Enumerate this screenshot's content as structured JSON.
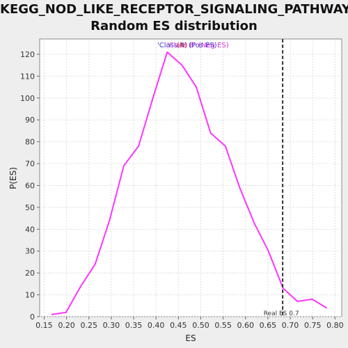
{
  "chart_data": {
    "type": "line",
    "title_line1": "KEGG_NOD_LIKE_RECEPTOR_SIGNALING_PATHWAY:",
    "title_line2": "Random ES distribution",
    "xlabel": "ES",
    "ylabel": "P(ES)",
    "xlim": [
      0.14,
      0.815
    ],
    "ylim": [
      0,
      127
    ],
    "xticks": [
      "0.15",
      "0.20",
      "0.25",
      "0.30",
      "0.35",
      "0.40",
      "0.45",
      "0.50",
      "0.55",
      "0.60",
      "0.65",
      "0.70",
      "0.75",
      "0.80"
    ],
    "yticks": [
      "0",
      "10",
      "20",
      "30",
      "40",
      "50",
      "60",
      "70",
      "80",
      "90",
      "100",
      "110",
      "120"
    ],
    "grid": true,
    "series": [
      {
        "color": "#ff33ff",
        "x": [
          0.167,
          0.199,
          0.232,
          0.264,
          0.296,
          0.328,
          0.361,
          0.393,
          0.425,
          0.458,
          0.49,
          0.522,
          0.555,
          0.587,
          0.619,
          0.651,
          0.684,
          0.716,
          0.749,
          0.781
        ],
        "y": [
          1,
          2,
          14,
          24,
          44,
          69,
          78,
          100,
          121,
          115,
          105,
          84,
          78,
          59,
          43,
          30,
          13,
          7,
          8,
          4
        ]
      }
    ],
    "legend_items": [
      {
        "text": "'Class A' (Pos ES)",
        "color": "#3333cc"
      },
      {
        "text": "'Class B' (Neg ES)",
        "color": "#cc33cc"
      },
      {
        "text": "(N)",
        "color": "#cc3333"
      }
    ],
    "real_es": {
      "value": 0.683,
      "label": "Real ES 0.7",
      "color": "#333333"
    }
  }
}
